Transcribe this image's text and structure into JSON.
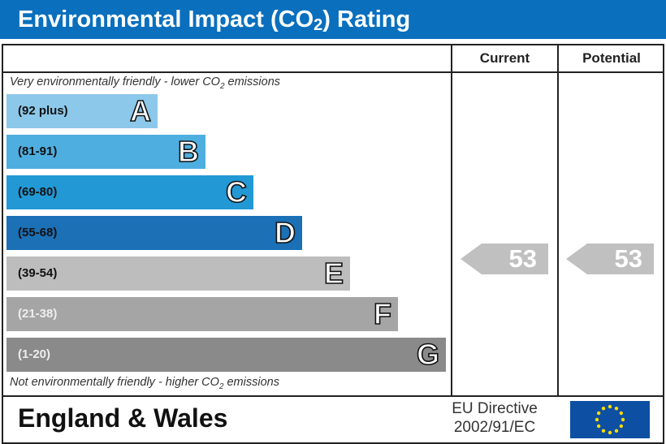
{
  "title": {
    "main": "Environmental Impact (CO",
    "sub": "2",
    "end": ") Rating"
  },
  "columns": {
    "current": "Current",
    "potential": "Potential"
  },
  "notes": {
    "top": {
      "text": "Very environmentally friendly - lower CO",
      "sub": "2",
      "end": " emissions"
    },
    "bottom": {
      "text": "Not environmentally friendly - higher CO",
      "sub": "2",
      "end": " emissions"
    }
  },
  "chart_data": {
    "type": "bar",
    "bands": [
      {
        "letter": "A",
        "range": "(92 plus)",
        "color": "#8cc8ea",
        "text_color": "#111"
      },
      {
        "letter": "B",
        "range": "(81-91)",
        "color": "#4eaee0",
        "text_color": "#111"
      },
      {
        "letter": "C",
        "range": "(69-80)",
        "color": "#2298d5",
        "text_color": "#111"
      },
      {
        "letter": "D",
        "range": "(55-68)",
        "color": "#1b70b6",
        "text_color": "#111"
      },
      {
        "letter": "E",
        "range": "(39-54)",
        "color": "#bdbdbd",
        "text_color": "#111"
      },
      {
        "letter": "F",
        "range": "(21-38)",
        "color": "#a5a5a5",
        "text_color": "#eee"
      },
      {
        "letter": "G",
        "range": "(1-20)",
        "color": "#8a8a8a",
        "text_color": "#eee"
      }
    ],
    "current": {
      "value": "53",
      "band": "E",
      "color": "#c0c0c0"
    },
    "potential": {
      "value": "53",
      "band": "E",
      "color": "#c0c0c0"
    }
  },
  "footer": {
    "region": "England & Wales",
    "directive_line1": "EU Directive",
    "directive_line2": "2002/91/EC",
    "flag": "eu-flag-icon"
  }
}
